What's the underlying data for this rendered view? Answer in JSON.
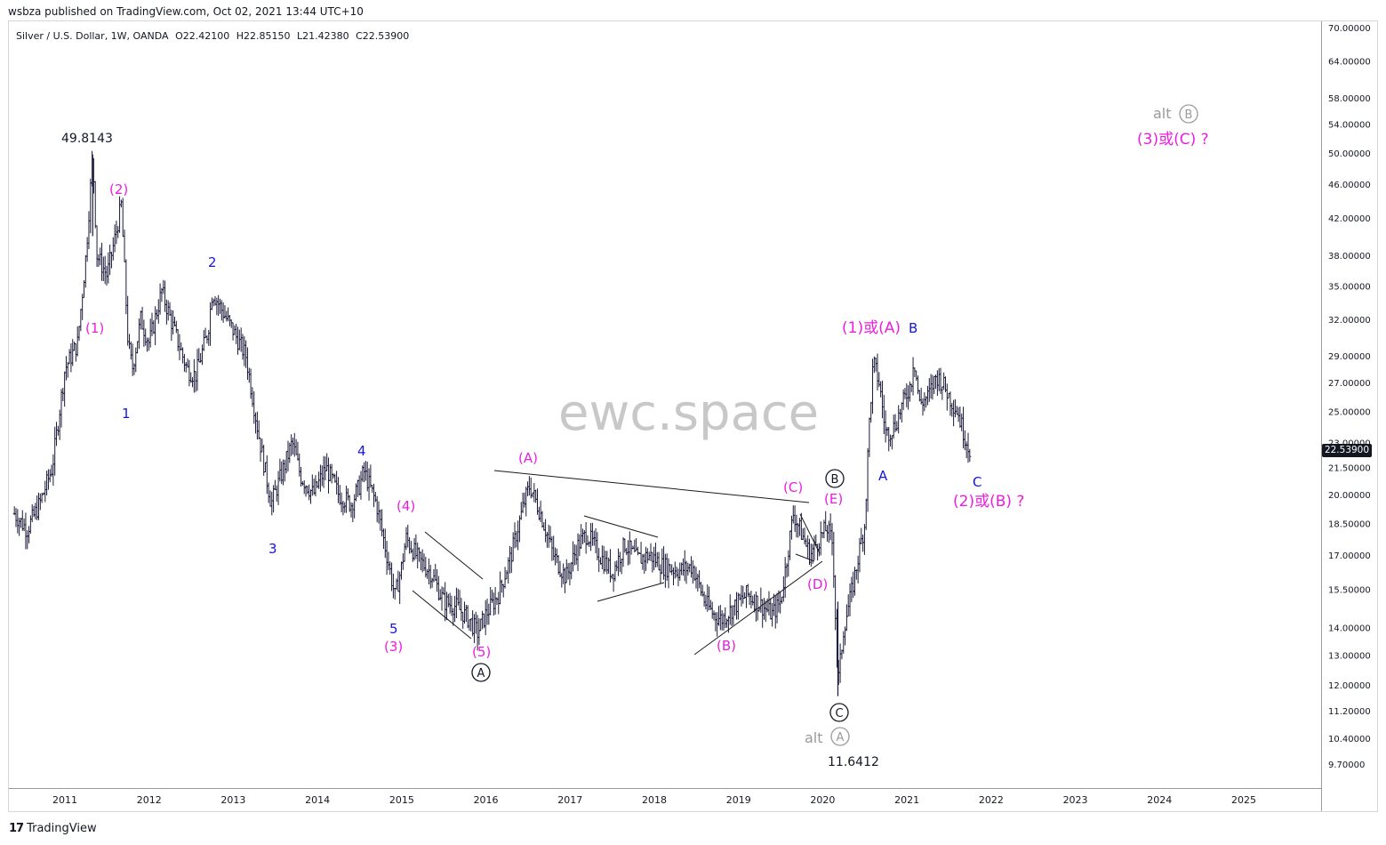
{
  "header": {
    "published": "wsbza published on TradingView.com, Oct 02, 2021 13:44 UTC+10"
  },
  "legend": {
    "symbol": "Silver / U.S. Dollar, 1W, OANDA",
    "open": "O22.42100",
    "high": "H22.85150",
    "low": "L21.42380",
    "close": "C22.53900"
  },
  "watermark": "ewc.space",
  "footer": {
    "logo_text": "17",
    "brand": "TradingView"
  },
  "last_price_label": "22.53900",
  "colors": {
    "candles": "#1a1a3a",
    "wave_magenta": "#e91ee0",
    "wave_blue": "#1515e0",
    "alt_gray": "#9a9a9a",
    "axis_text": "#131722"
  },
  "chart_data": {
    "type": "candlestick",
    "title": "Silver / U.S. Dollar, 1W, OANDA",
    "y_scale": "log",
    "ylim": [
      9.0,
      71.0
    ],
    "y_ticks": [
      "70.00000",
      "64.00000",
      "58.00000",
      "54.00000",
      "50.00000",
      "46.00000",
      "42.00000",
      "38.00000",
      "35.00000",
      "32.00000",
      "29.00000",
      "27.00000",
      "25.00000",
      "23.00000",
      "21.50000",
      "20.00000",
      "18.50000",
      "17.00000",
      "15.50000",
      "14.00000",
      "13.00000",
      "12.00000",
      "11.20000",
      "10.40000",
      "9.70000"
    ],
    "x_ticks": [
      "2011",
      "2012",
      "2013",
      "2014",
      "2015",
      "2016",
      "2017",
      "2018",
      "2019",
      "2020",
      "2021",
      "2022",
      "2023",
      "2024",
      "2025"
    ],
    "xlim": [
      2010.4,
      2025.9
    ],
    "ohlc_last": {
      "open": 22.421,
      "high": 22.8515,
      "low": 21.4238,
      "close": 22.539
    },
    "price_path": [
      [
        2010.4,
        19.0
      ],
      [
        2010.55,
        18.2
      ],
      [
        2010.7,
        19.5
      ],
      [
        2010.85,
        21.5
      ],
      [
        2011.0,
        28.0
      ],
      [
        2011.15,
        30.0
      ],
      [
        2011.25,
        38.0
      ],
      [
        2011.33,
        49.8
      ],
      [
        2011.38,
        38.0
      ],
      [
        2011.5,
        36.0
      ],
      [
        2011.6,
        40.0
      ],
      [
        2011.67,
        43.5
      ],
      [
        2011.75,
        30.0
      ],
      [
        2011.8,
        28.0
      ],
      [
        2011.9,
        32.0
      ],
      [
        2012.0,
        30.0
      ],
      [
        2012.15,
        34.5
      ],
      [
        2012.3,
        31.0
      ],
      [
        2012.45,
        28.0
      ],
      [
        2012.55,
        27.5
      ],
      [
        2012.7,
        31.0
      ],
      [
        2012.75,
        34.5
      ],
      [
        2012.85,
        33.0
      ],
      [
        2013.0,
        31.0
      ],
      [
        2013.15,
        29.0
      ],
      [
        2013.3,
        23.5
      ],
      [
        2013.45,
        19.5
      ],
      [
        2013.6,
        21.5
      ],
      [
        2013.7,
        23.0
      ],
      [
        2013.8,
        21.0
      ],
      [
        2013.95,
        20.0
      ],
      [
        2014.1,
        21.5
      ],
      [
        2014.25,
        20.0
      ],
      [
        2014.4,
        19.5
      ],
      [
        2014.5,
        20.5
      ],
      [
        2014.55,
        21.3
      ],
      [
        2014.7,
        19.5
      ],
      [
        2014.85,
        16.5
      ],
      [
        2014.92,
        15.2
      ],
      [
        2015.0,
        16.5
      ],
      [
        2015.05,
        17.8
      ],
      [
        2015.2,
        16.8
      ],
      [
        2015.35,
        16.2
      ],
      [
        2015.5,
        15.0
      ],
      [
        2015.65,
        14.8
      ],
      [
        2015.8,
        14.3
      ],
      [
        2015.9,
        13.8
      ],
      [
        2016.0,
        14.5
      ],
      [
        2016.15,
        15.3
      ],
      [
        2016.3,
        17.0
      ],
      [
        2016.45,
        19.5
      ],
      [
        2016.52,
        20.5
      ],
      [
        2016.65,
        19.0
      ],
      [
        2016.8,
        17.0
      ],
      [
        2016.95,
        16.0
      ],
      [
        2017.1,
        17.5
      ],
      [
        2017.2,
        18.0
      ],
      [
        2017.35,
        17.0
      ],
      [
        2017.5,
        16.2
      ],
      [
        2017.65,
        17.5
      ],
      [
        2017.8,
        16.8
      ],
      [
        2017.95,
        17.0
      ],
      [
        2018.1,
        16.5
      ],
      [
        2018.3,
        16.3
      ],
      [
        2018.45,
        16.5
      ],
      [
        2018.6,
        15.0
      ],
      [
        2018.7,
        14.5
      ],
      [
        2018.8,
        14.3
      ],
      [
        2018.95,
        14.8
      ],
      [
        2019.1,
        15.3
      ],
      [
        2019.25,
        14.9
      ],
      [
        2019.4,
        14.5
      ],
      [
        2019.5,
        15.0
      ],
      [
        2019.58,
        17.0
      ],
      [
        2019.65,
        19.0
      ],
      [
        2019.75,
        18.0
      ],
      [
        2019.85,
        17.0
      ],
      [
        2019.95,
        17.7
      ],
      [
        2020.05,
        18.3
      ],
      [
        2020.12,
        17.5
      ],
      [
        2020.18,
        12.0
      ],
      [
        2020.25,
        14.0
      ],
      [
        2020.35,
        15.5
      ],
      [
        2020.45,
        17.5
      ],
      [
        2020.5,
        18.5
      ],
      [
        2020.55,
        24.0
      ],
      [
        2020.6,
        28.5
      ],
      [
        2020.67,
        27.0
      ],
      [
        2020.75,
        23.5
      ],
      [
        2020.85,
        24.0
      ],
      [
        2020.95,
        25.5
      ],
      [
        2021.05,
        27.0
      ],
      [
        2021.08,
        29.0
      ],
      [
        2021.15,
        25.5
      ],
      [
        2021.25,
        26.0
      ],
      [
        2021.35,
        27.5
      ],
      [
        2021.42,
        27.0
      ],
      [
        2021.5,
        26.0
      ],
      [
        2021.6,
        25.0
      ],
      [
        2021.68,
        23.5
      ],
      [
        2021.75,
        22.5
      ]
    ]
  },
  "annotations": {
    "high_price": "49.8143",
    "low_price": "11.6412",
    "magenta": {
      "w1": "(1)",
      "w2": "(2)",
      "w3": "(3)",
      "w4": "(4)",
      "w5": "(5)",
      "A": "(A)",
      "B": "(B)",
      "C": "(C)",
      "D": "(D)",
      "E": "(E)",
      "one_or_A": "(1)或(A)",
      "two_or_B": "(2)或(B) ?",
      "three_or_C": "(3)或(C) ?"
    },
    "blue": {
      "w1": "1",
      "w2": "2",
      "w3": "3",
      "w4": "4",
      "w5": "5",
      "A": "A",
      "B": "B",
      "C": "C"
    },
    "circled": {
      "A": "A",
      "B": "B",
      "C": "C"
    },
    "alt_text": "alt"
  }
}
